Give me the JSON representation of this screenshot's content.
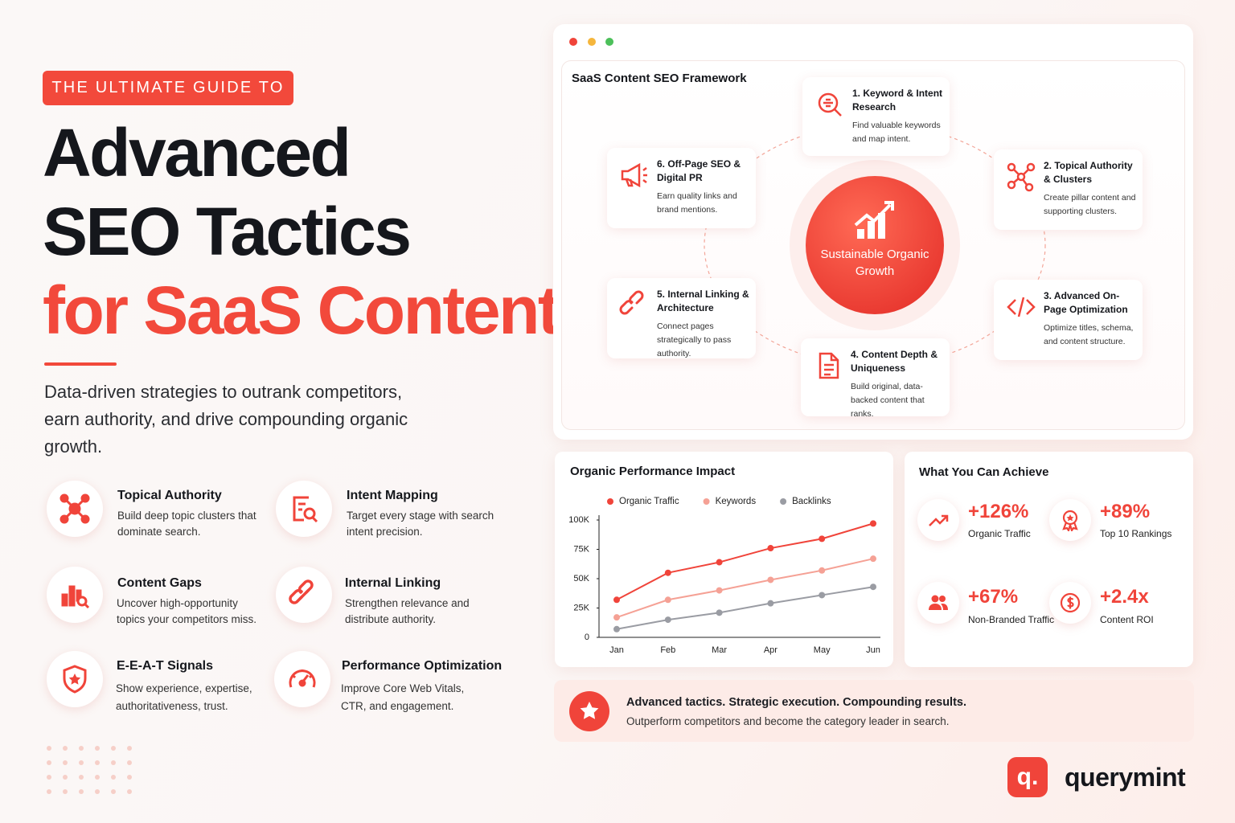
{
  "header": {
    "eyebrow": "THE ULTIMATE GUIDE TO",
    "title_line1": "Advanced",
    "title_line2": "SEO Tactics",
    "title_line3": "for SaaS Content",
    "subtitle": "Data-driven strategies to outrank competitors, earn authority, and drive compounding organic growth."
  },
  "tactics": [
    {
      "title": "Topical Authority",
      "description": "Build deep topic clusters that dominate search."
    },
    {
      "title": "Intent Mapping",
      "description": "Target every stage with search intent precision."
    },
    {
      "title": "Content Gaps",
      "description": "Uncover high-opportunity topics your competitors miss."
    },
    {
      "title": "Internal Linking",
      "description": "Strengthen relevance and distribute authority."
    },
    {
      "title": "E-E-A-T Signals",
      "description": "Show experience, expertise, authoritativeness, trust."
    },
    {
      "title": "Performance Optimization",
      "description": "Improve Core Web Vitals, CTR, and engagement."
    }
  ],
  "framework": {
    "title": "SaaS Content SEO Framework",
    "center": "Sustainable Organic Growth",
    "steps": [
      {
        "title": "1. Keyword & Intent Research",
        "description": "Find valuable keywords and map intent."
      },
      {
        "title": "2. Topical Authority & Clusters",
        "description": "Create pillar content and supporting clusters."
      },
      {
        "title": "3. Advanced On-Page Optimization",
        "description": "Optimize titles, schema, and content structure."
      },
      {
        "title": "4. Content Depth & Uniqueness",
        "description": "Build original, data-backed content that ranks."
      },
      {
        "title": "5. Internal Linking & Architecture",
        "description": "Connect pages strategically to pass authority."
      },
      {
        "title": "6. Off-Page SEO & Digital PR",
        "description": "Earn quality links and brand mentions."
      }
    ]
  },
  "chart_data": {
    "type": "line",
    "title": "Organic Performance Impact",
    "categories": [
      "Jan",
      "Feb",
      "Mar",
      "Apr",
      "May",
      "Jun"
    ],
    "series": [
      {
        "name": "Organic Traffic",
        "color": "#f0443a",
        "values": [
          32000,
          55000,
          64000,
          76000,
          84000,
          97000
        ]
      },
      {
        "name": "Keywords",
        "color": "#f5a195",
        "values": [
          17000,
          32000,
          40000,
          49000,
          57000,
          67000
        ]
      },
      {
        "name": "Backlinks",
        "color": "#9a9ca3",
        "values": [
          7000,
          15000,
          21000,
          29000,
          36000,
          43000
        ]
      }
    ],
    "ylim": [
      0,
      100000
    ],
    "yticks": [
      0,
      {
        "value": 25000,
        "label": "25K"
      },
      {
        "value": 50000,
        "label": "50K"
      },
      {
        "value": 75000,
        "label": "75K"
      },
      {
        "value": 100000,
        "label": "100K"
      }
    ],
    "grid": false,
    "legend": "top"
  },
  "achievements": {
    "title": "What You Can Achieve",
    "items": [
      {
        "value": "+126%",
        "label": "Organic Traffic"
      },
      {
        "value": "+89%",
        "label": "Top 10 Rankings"
      },
      {
        "value": "+67%",
        "label": "Non-Branded Traffic"
      },
      {
        "value": "+2.4x",
        "label": "Content ROI"
      }
    ]
  },
  "banner": {
    "headline": "Advanced tactics. Strategic execution. Compounding results.",
    "text": "Outperform competitors and become the category leader in search."
  },
  "brand": {
    "logo": "q.",
    "name": "querymint"
  }
}
